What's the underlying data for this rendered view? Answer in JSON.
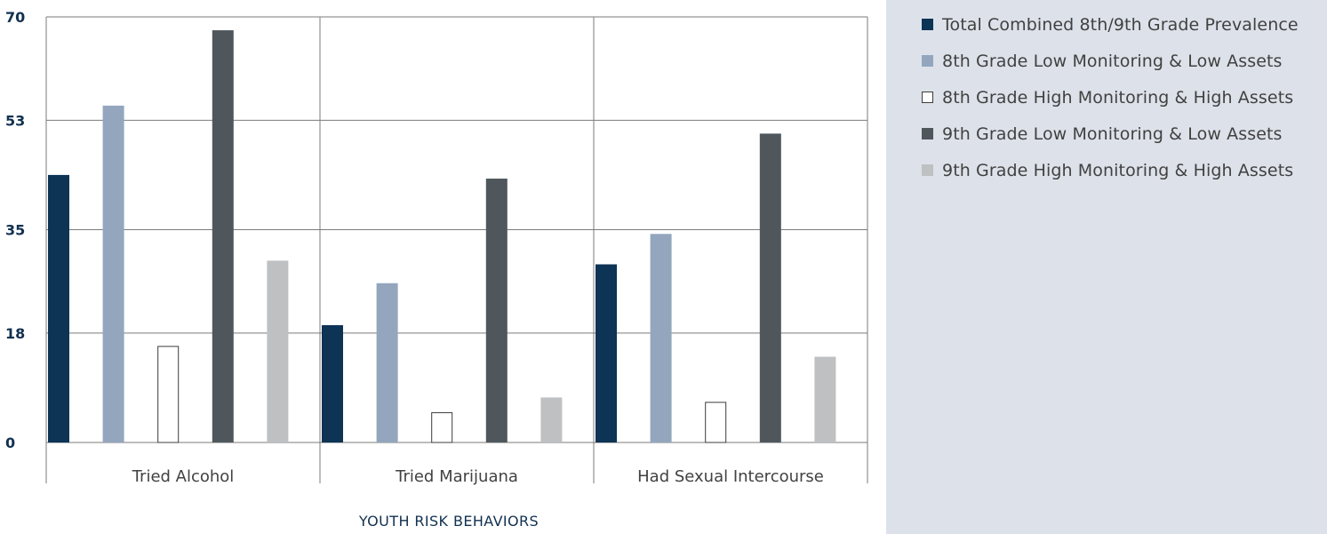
{
  "chart_data": {
    "type": "bar",
    "title": "",
    "xlabel": "YOUTH RISK BEHAVIORS",
    "ylabel": "",
    "ylim": [
      0,
      70
    ],
    "yticks": [
      0,
      18,
      35,
      53,
      70
    ],
    "grid": true,
    "legend_position": "right",
    "categories": [
      "Tried Alcohol",
      "Tried Marijuana",
      "Had Sexual Intercourse"
    ],
    "series": [
      {
        "name": "Total Combined 8th/9th Grade Prevalence",
        "color": "#0d3355",
        "outline": false,
        "values": [
          44,
          19.3,
          29.3
        ]
      },
      {
        "name": "8th Grade Low Monitoring & Low Assets",
        "color": "#93a6be",
        "outline": false,
        "values": [
          55.4,
          26.2,
          34.3
        ]
      },
      {
        "name": "8th Grade High Monitoring & High Assets",
        "color": "#ffffff",
        "outline": true,
        "values": [
          15.8,
          4.9,
          6.6
        ]
      },
      {
        "name": "9th Grade Low Monitoring & Low Assets",
        "color": "#4f575c",
        "outline": false,
        "values": [
          67.8,
          43.4,
          50.8
        ]
      },
      {
        "name": "9th Grade High Monitoring & High Assets",
        "color": "#bec0c2",
        "outline": false,
        "values": [
          29.9,
          7.4,
          14.1
        ]
      }
    ]
  }
}
